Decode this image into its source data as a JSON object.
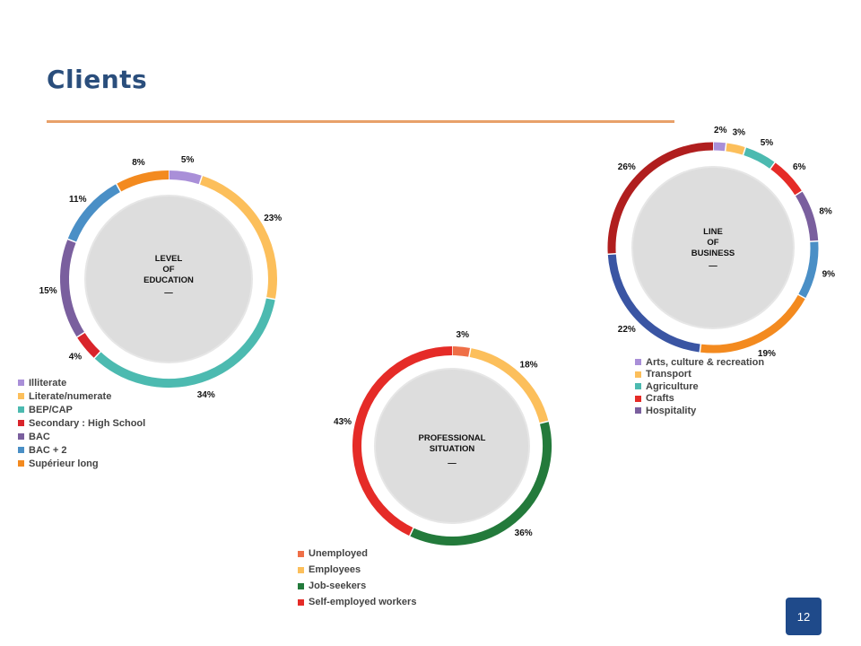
{
  "page": {
    "title": "Clients",
    "page_number": "12"
  },
  "colors": {
    "accent_rule": "#e8a16a",
    "title": "#2a4e7c",
    "badge": "#1f4a8a",
    "center_fill": "#dddddd"
  },
  "chart_data": [
    {
      "type": "pie",
      "subtype": "donut",
      "center_label": [
        "LEVEL",
        "OF",
        "EDUCATION",
        "—"
      ],
      "categories": [
        "Illiterate",
        "Literate/numerate",
        "BEP/CAP",
        "Secondary : High School",
        "BAC",
        "BAC + 2",
        "Supérieur long"
      ],
      "values": [
        5,
        23,
        34,
        4,
        15,
        11,
        8
      ],
      "labels": [
        "5%",
        "23%",
        "34%",
        "4%",
        "15%",
        "11%",
        "8%"
      ],
      "colors": [
        "#a98fd8",
        "#fcbf5b",
        "#4cbab0",
        "#d9242b",
        "#7a5f9e",
        "#4a8fc6",
        "#f38a1f"
      ],
      "legend_placement": "bottom-left"
    },
    {
      "type": "pie",
      "subtype": "donut",
      "center_label": [
        "PROFESSIONAL",
        "SITUATION",
        "—"
      ],
      "categories": [
        "Unemployed",
        "Employees",
        "Job-seekers",
        "Self-employed workers"
      ],
      "values": [
        3,
        18,
        36,
        43
      ],
      "labels": [
        "3%",
        "18%",
        "36%",
        "43%"
      ],
      "colors": [
        "#ef6f47",
        "#fcbf5b",
        "#237a3b",
        "#e52b27"
      ],
      "legend_placement": "bottom-left"
    },
    {
      "type": "pie",
      "subtype": "donut",
      "center_label": [
        "LINE",
        "OF",
        "BUSINESS",
        "—"
      ],
      "legend_entries": [
        "Arts, culture & recreation",
        "Transport",
        "Agriculture",
        "Crafts",
        "Hospitality"
      ],
      "values": [
        2,
        3,
        5,
        6,
        8,
        9,
        19,
        22,
        26
      ],
      "labels": [
        "2%",
        "3%",
        "5%",
        "6%",
        "8%",
        "9%",
        "19%",
        "22%",
        "26%"
      ],
      "colors": [
        "#a98fd8",
        "#fcbf5b",
        "#4cbab0",
        "#e52b27",
        "#7a5f9e",
        "#4a8fc6",
        "#f38a1f",
        "#3a55a3",
        "#b01e1e"
      ],
      "legend_placement": "bottom-left"
    }
  ]
}
